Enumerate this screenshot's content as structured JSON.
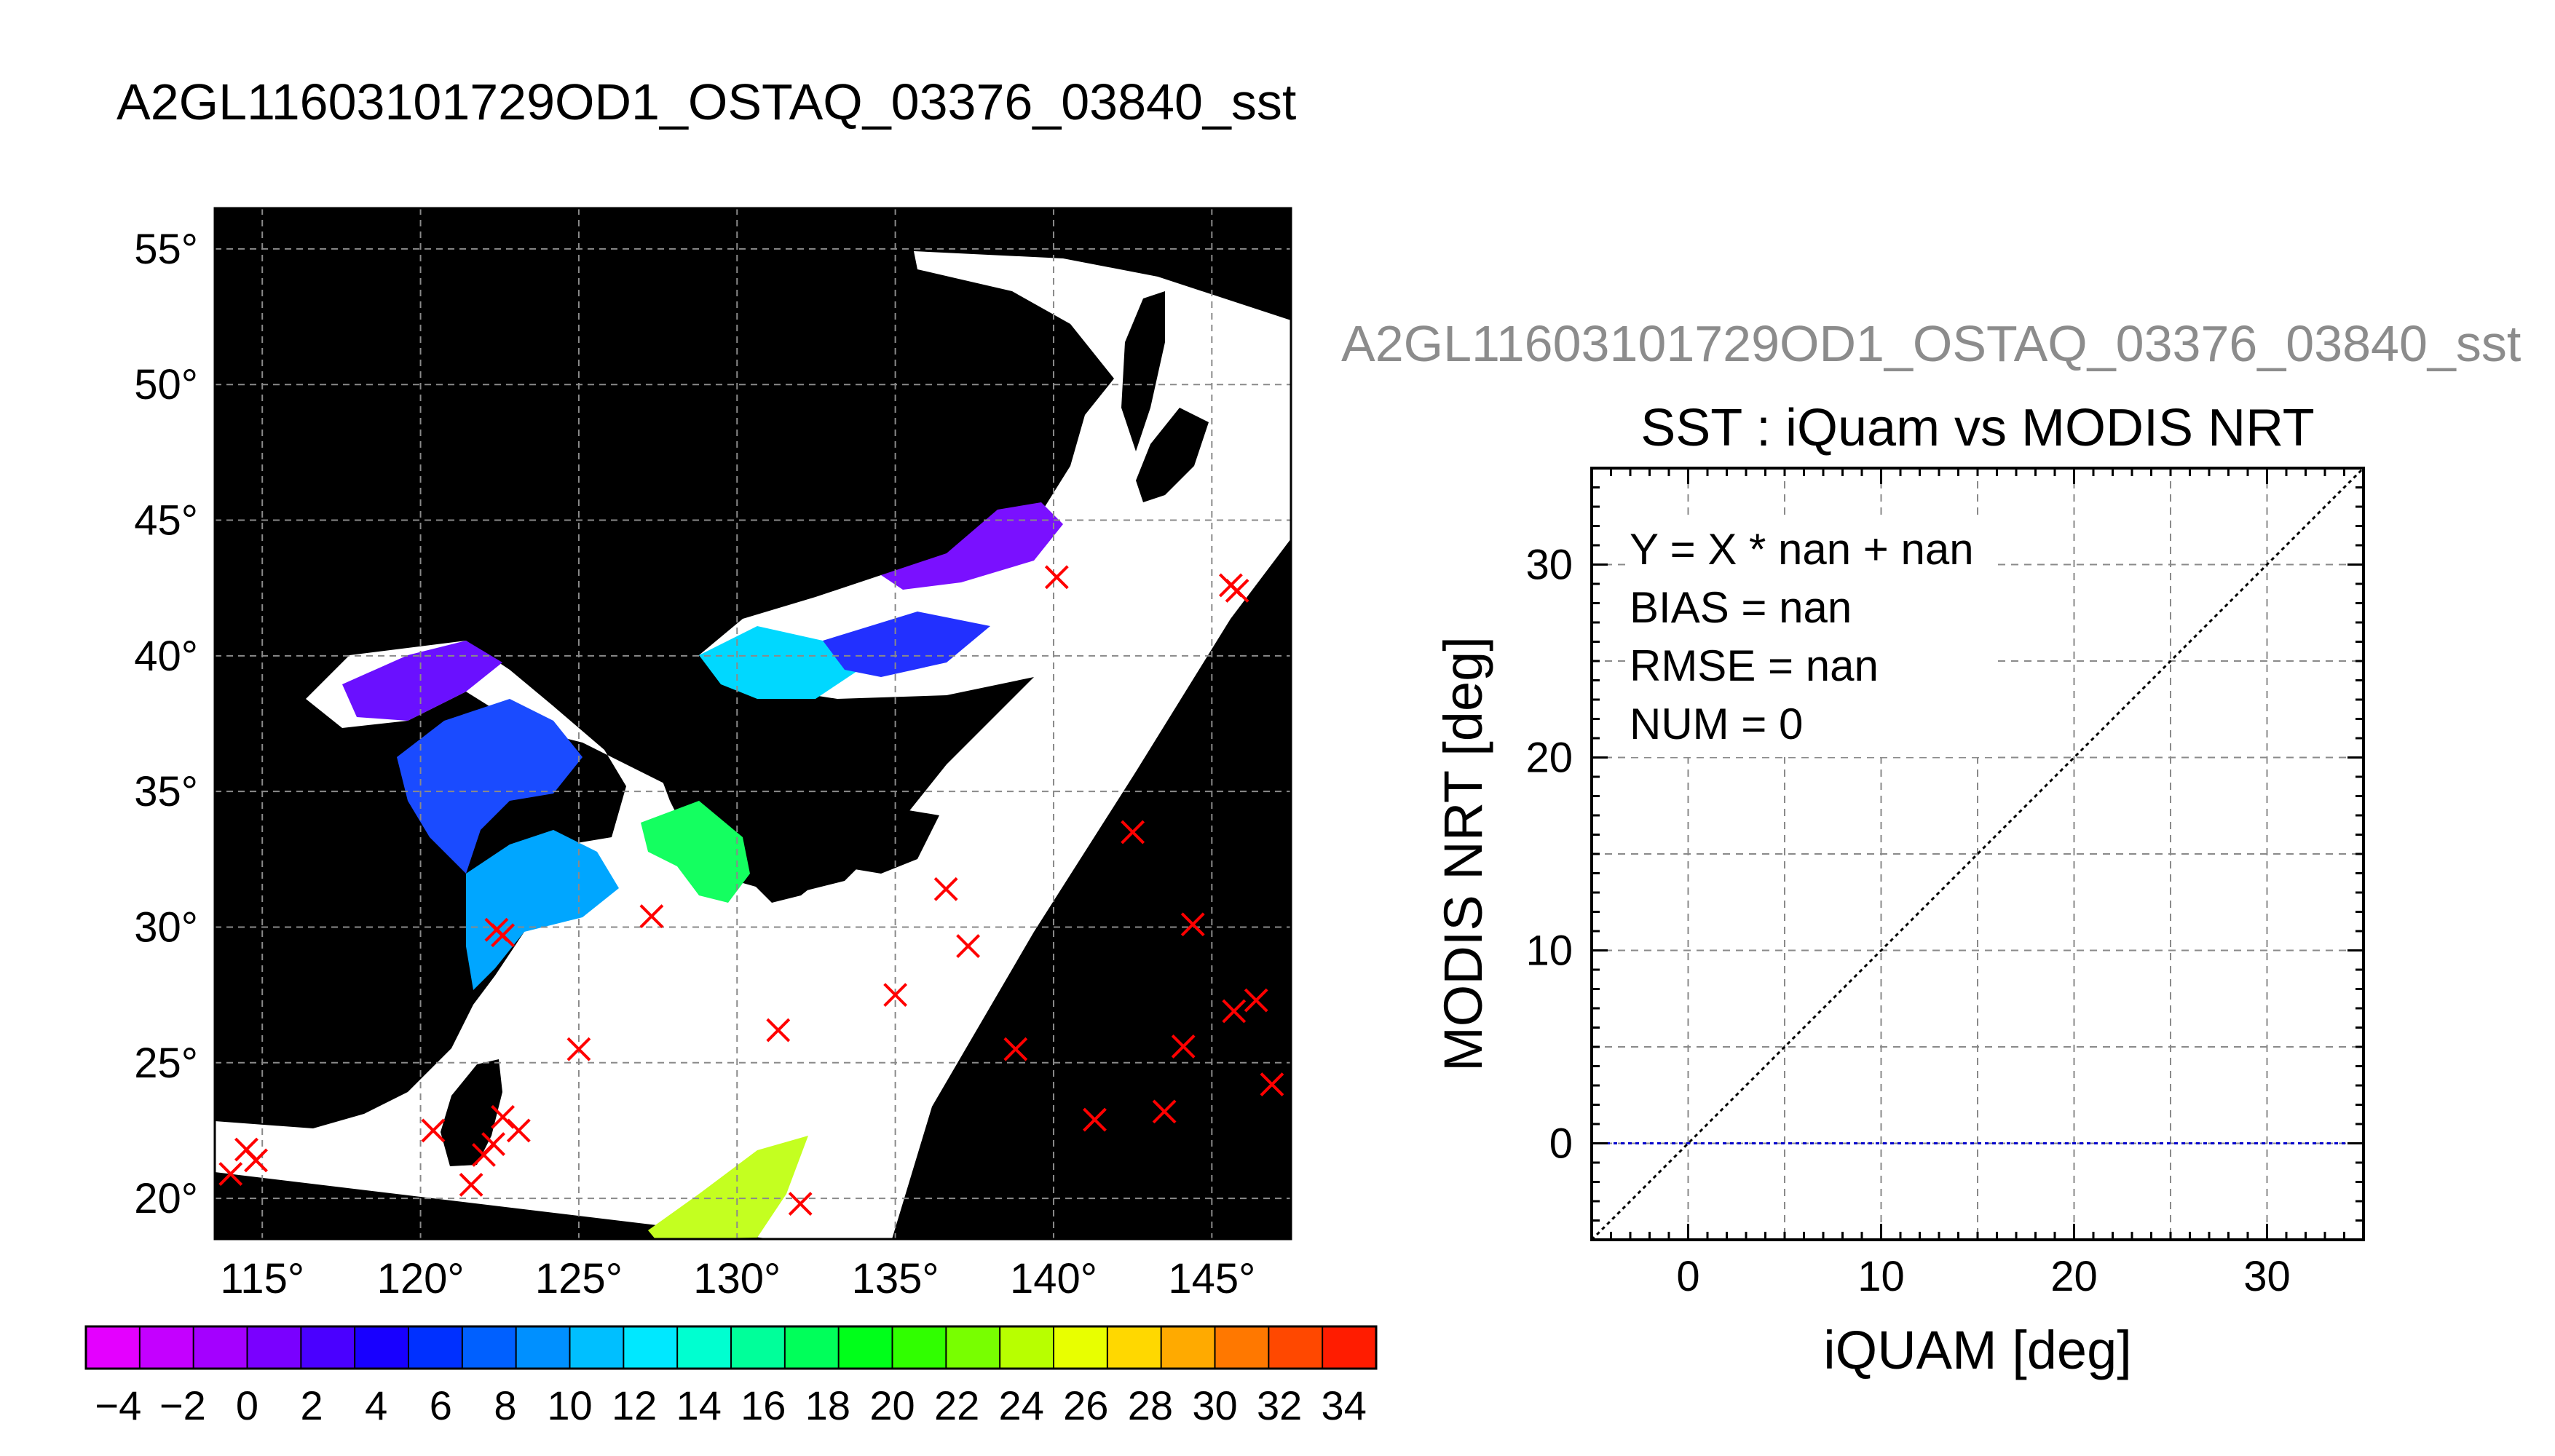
{
  "page": {
    "main_title": "A2GL11603101729OD1_OSTAQ_03376_03840_sst",
    "right_header": "A2GL11603101729OD1_OSTAQ_03376_03840_sst"
  },
  "map": {
    "lon_range": [
      113.5,
      147.5
    ],
    "lat_range": [
      18.5,
      56.5
    ],
    "lon_ticks": [
      115,
      120,
      125,
      130,
      135,
      140,
      145
    ],
    "lon_tick_labels": [
      "115°",
      "120°",
      "125°",
      "130°",
      "135°",
      "140°",
      "145°"
    ],
    "lat_ticks": [
      20,
      25,
      30,
      35,
      40,
      45,
      50,
      55
    ],
    "lat_tick_labels": [
      "20°",
      "25°",
      "30°",
      "35°",
      "40°",
      "45°",
      "50°",
      "55°"
    ],
    "grid": true,
    "colors": {
      "background": "#000000",
      "no_data": "#ffffff",
      "marker": "#ff0000"
    },
    "markers": [
      {
        "lon": 114.0,
        "lat": 20.9
      },
      {
        "lon": 114.5,
        "lat": 21.8
      },
      {
        "lon": 114.8,
        "lat": 21.4
      },
      {
        "lon": 120.4,
        "lat": 22.5
      },
      {
        "lon": 121.6,
        "lat": 20.5
      },
      {
        "lon": 122.0,
        "lat": 21.6
      },
      {
        "lon": 122.3,
        "lat": 22.0
      },
      {
        "lon": 122.6,
        "lat": 23.0
      },
      {
        "lon": 123.1,
        "lat": 22.5
      },
      {
        "lon": 122.4,
        "lat": 29.9
      },
      {
        "lon": 122.6,
        "lat": 29.7
      },
      {
        "lon": 125.0,
        "lat": 25.5
      },
      {
        "lon": 127.3,
        "lat": 30.4
      },
      {
        "lon": 131.3,
        "lat": 26.2
      },
      {
        "lon": 132.0,
        "lat": 19.8
      },
      {
        "lon": 135.0,
        "lat": 27.5
      },
      {
        "lon": 136.6,
        "lat": 31.4
      },
      {
        "lon": 137.3,
        "lat": 29.3
      },
      {
        "lon": 138.8,
        "lat": 25.5
      },
      {
        "lon": 140.1,
        "lat": 42.9
      },
      {
        "lon": 141.3,
        "lat": 22.9
      },
      {
        "lon": 142.5,
        "lat": 33.5
      },
      {
        "lon": 143.5,
        "lat": 23.2
      },
      {
        "lon": 144.1,
        "lat": 25.6
      },
      {
        "lon": 144.4,
        "lat": 30.1
      },
      {
        "lon": 145.6,
        "lat": 42.6
      },
      {
        "lon": 145.8,
        "lat": 42.4
      },
      {
        "lon": 145.7,
        "lat": 26.9
      },
      {
        "lon": 146.4,
        "lat": 27.3
      },
      {
        "lon": 146.9,
        "lat": 24.2
      }
    ]
  },
  "colorbar": {
    "min": -5,
    "max": 35,
    "tick_labels": [
      "−4",
      "−2",
      "0",
      "2",
      "4",
      "6",
      "8",
      "10",
      "12",
      "14",
      "16",
      "18",
      "20",
      "22",
      "24",
      "26",
      "28",
      "30",
      "32",
      "34"
    ],
    "tick_values": [
      -4,
      -2,
      0,
      2,
      4,
      6,
      8,
      10,
      12,
      14,
      16,
      18,
      20,
      22,
      24,
      26,
      28,
      30,
      32,
      34
    ],
    "colors": [
      "#e400ff",
      "#c400ff",
      "#a400ff",
      "#7a00ff",
      "#4a00ff",
      "#1800ff",
      "#0030ff",
      "#0060ff",
      "#0090ff",
      "#00bfff",
      "#00e8ff",
      "#00ffd0",
      "#00ff9a",
      "#00ff5a",
      "#00ff1a",
      "#30ff00",
      "#78ff00",
      "#b8ff00",
      "#e8ff00",
      "#ffd800",
      "#ffaa00",
      "#ff7800",
      "#ff4800",
      "#ff1c00"
    ]
  },
  "chart_data": {
    "type": "scatter",
    "title": "SST : iQuam vs MODIS NRT",
    "xlabel": "iQUAM [deg]",
    "ylabel": "MODIS NRT [deg]",
    "xlim": [
      -5,
      35
    ],
    "ylim": [
      -5,
      35
    ],
    "x_ticks": [
      0,
      10,
      20,
      30
    ],
    "x_tick_labels": [
      "0",
      "10",
      "20",
      "30"
    ],
    "y_ticks": [
      0,
      10,
      20,
      30
    ],
    "y_tick_labels": [
      "0",
      "10",
      "20",
      "30"
    ],
    "grid": true,
    "points": [],
    "reference_lines": [
      {
        "name": "one-to-one",
        "x": [
          -5,
          35
        ],
        "y": [
          -5,
          35
        ],
        "color": "#000000",
        "style": "dotted"
      },
      {
        "name": "zero",
        "x": [
          -5,
          35
        ],
        "y": [
          0,
          0
        ],
        "color": "#0000cc",
        "style": "dotted"
      }
    ],
    "stats": [
      "Y = X * nan + nan",
      "BIAS = nan",
      "RMSE = nan",
      "NUM = 0"
    ]
  }
}
